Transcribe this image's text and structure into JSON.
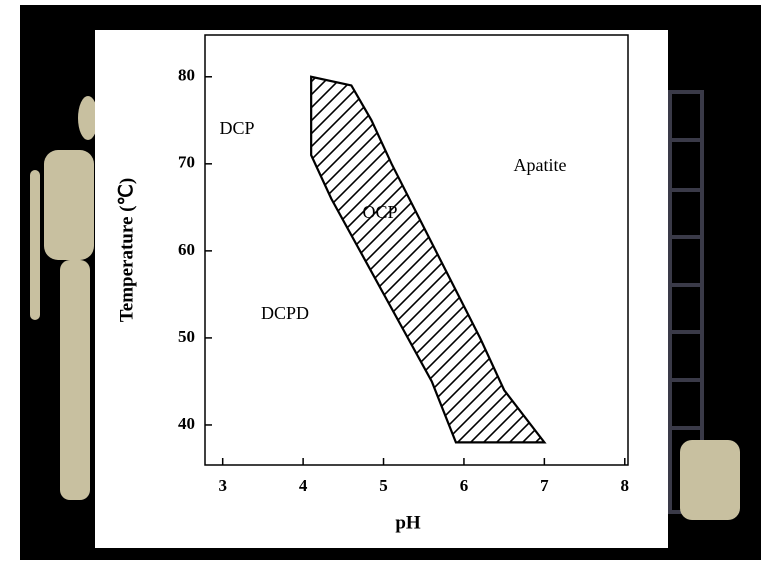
{
  "chart_data": {
    "type": "area",
    "x_label": "pH",
    "y_label": "Temperature (℃)",
    "x": [
      4.1,
      4.1,
      4.35,
      5.6,
      5.9,
      7.0,
      6.5,
      6.2,
      5.65,
      5.1,
      4.85,
      4.6
    ],
    "series": [
      {
        "name": "OCP",
        "color": "#000000",
        "values": [
          80,
          71,
          66,
          45,
          38,
          38,
          44,
          50,
          60,
          70,
          75,
          79
        ]
      }
    ],
    "annotations": [
      "DCP",
      "Apatite",
      "DCPD"
    ],
    "xlim": [
      2.78,
      8.04
    ],
    "xticks": [
      3,
      4,
      5,
      6,
      7,
      8
    ],
    "ylim": [
      35.4,
      84.8
    ],
    "yticks": [
      40,
      50,
      60,
      70,
      80
    ]
  }
}
